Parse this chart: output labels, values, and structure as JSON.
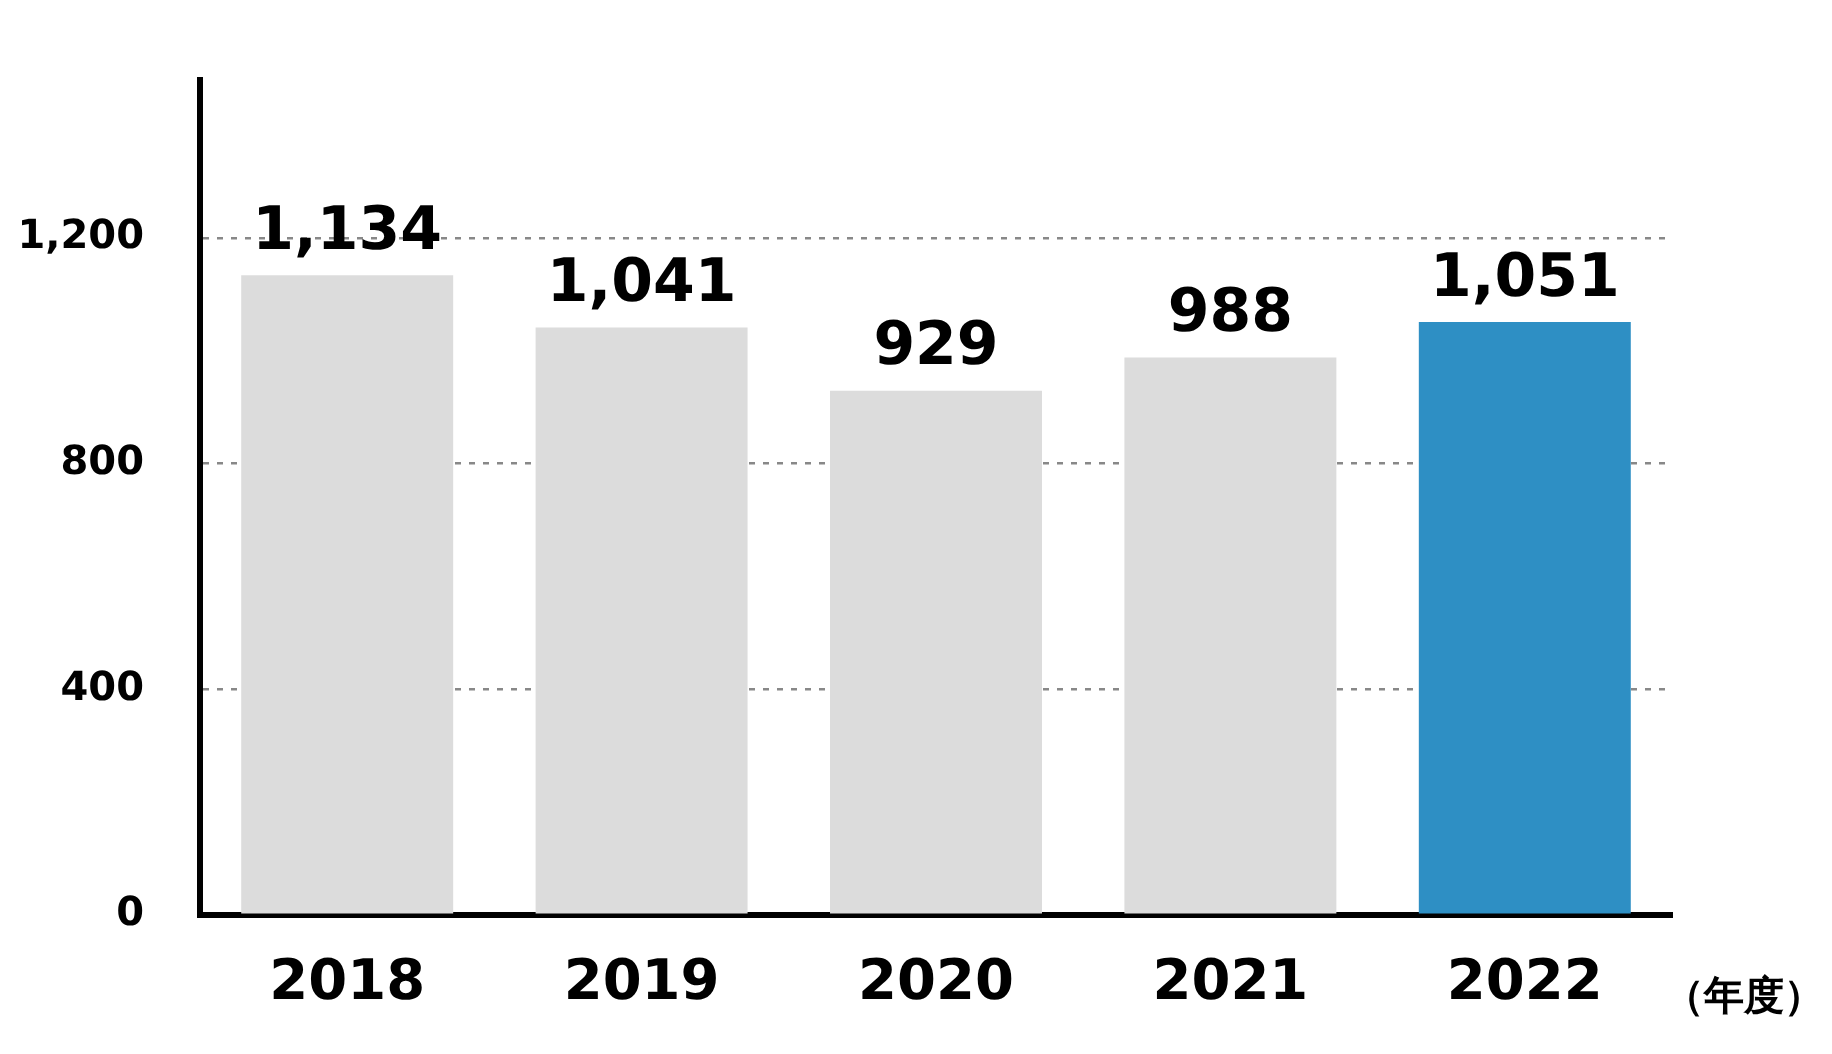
{
  "chart_data": {
    "type": "bar",
    "categories": [
      "2018",
      "2019",
      "2020",
      "2021",
      "2022"
    ],
    "values": [
      1134,
      1041,
      929,
      988,
      1051
    ],
    "colors": [
      "#dcdcdc",
      "#dcdcdc",
      "#dcdcdc",
      "#dcdcdc",
      "#2e8fc4"
    ],
    "xlabel": "（年度）",
    "ylim": [
      0,
      1480
    ],
    "yticks": [
      0,
      400,
      800,
      {
        "value": 1200,
        "label": "1,200"
      }
    ],
    "value_labels": [
      "1,134",
      "1,041",
      "929",
      "988",
      "1,051"
    ],
    "grid": "y"
  }
}
